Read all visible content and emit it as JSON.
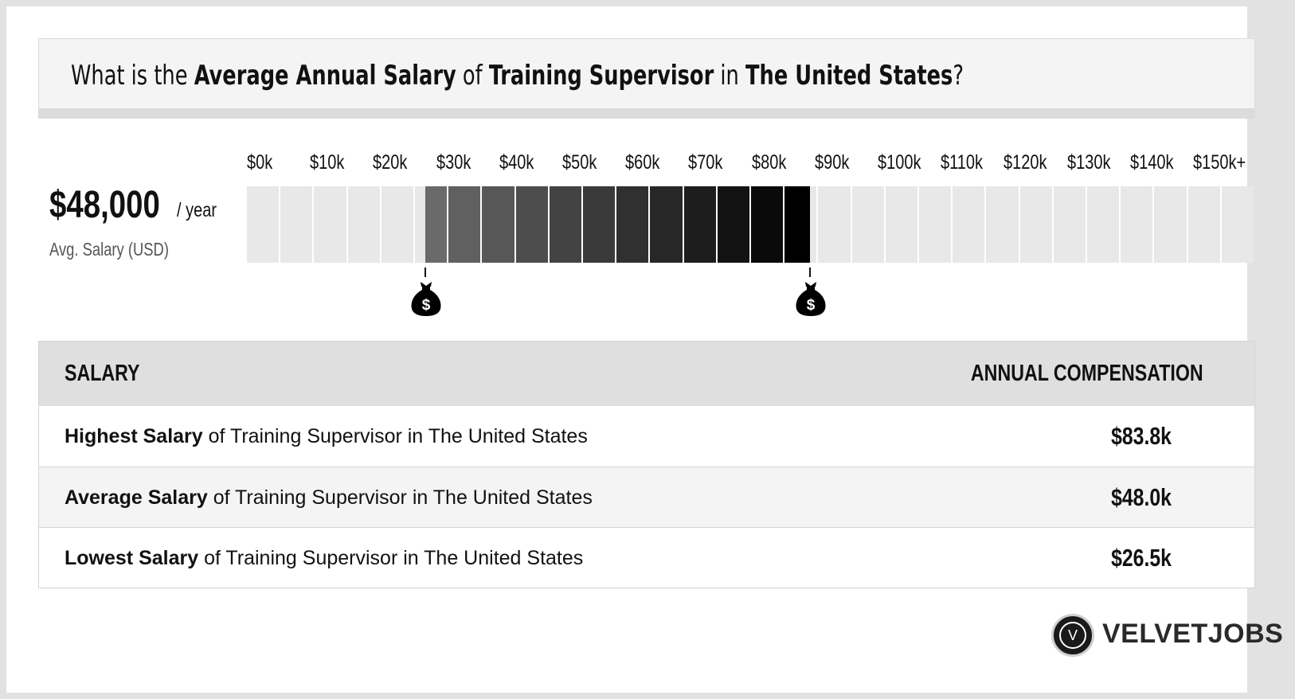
{
  "title": {
    "prefix": "What is the ",
    "term1": "Average Annual Salary",
    "mid1": " of ",
    "term2": "Training Supervisor",
    "mid2": " in ",
    "term3": "The United States",
    "suffix": "?"
  },
  "summary": {
    "salary": "$48,000",
    "per": "/ year",
    "label": "Avg. Salary (USD)"
  },
  "chart_data": {
    "type": "bar",
    "axis_ticks": [
      "$0k",
      "$10k",
      "$20k",
      "$30k",
      "$40k",
      "$50k",
      "$60k",
      "$70k",
      "$80k",
      "$90k",
      "$100k",
      "$110k",
      "$120k",
      "$130k",
      "$140k",
      "$150k+"
    ],
    "xlim": [
      0,
      150
    ],
    "range_low_k": 26.5,
    "range_high_k": 83.8,
    "average_k": 48.0,
    "markers": [
      {
        "value_k": 26.5,
        "icon": "money-bag-icon"
      },
      {
        "value_k": 83.8,
        "icon": "money-bag-icon"
      }
    ],
    "colors": {
      "empty": "#e8e8e8",
      "range_start": "#6a6a6a",
      "range_end": "#000000"
    }
  },
  "table": {
    "header_left": "SALARY",
    "header_right": "ANNUAL COMPENSATION",
    "rows": [
      {
        "bold": "Highest Salary",
        "text": " of Training Supervisor in The United States",
        "value": "$83.8k"
      },
      {
        "bold": "Average Salary",
        "text": " of Training Supervisor in The United States",
        "value": "$48.0k"
      },
      {
        "bold": "Lowest Salary",
        "text": " of Training Supervisor in The United States",
        "value": "$26.5k"
      }
    ]
  },
  "logo": {
    "letter": "V",
    "text": "VELVETJOBS"
  }
}
